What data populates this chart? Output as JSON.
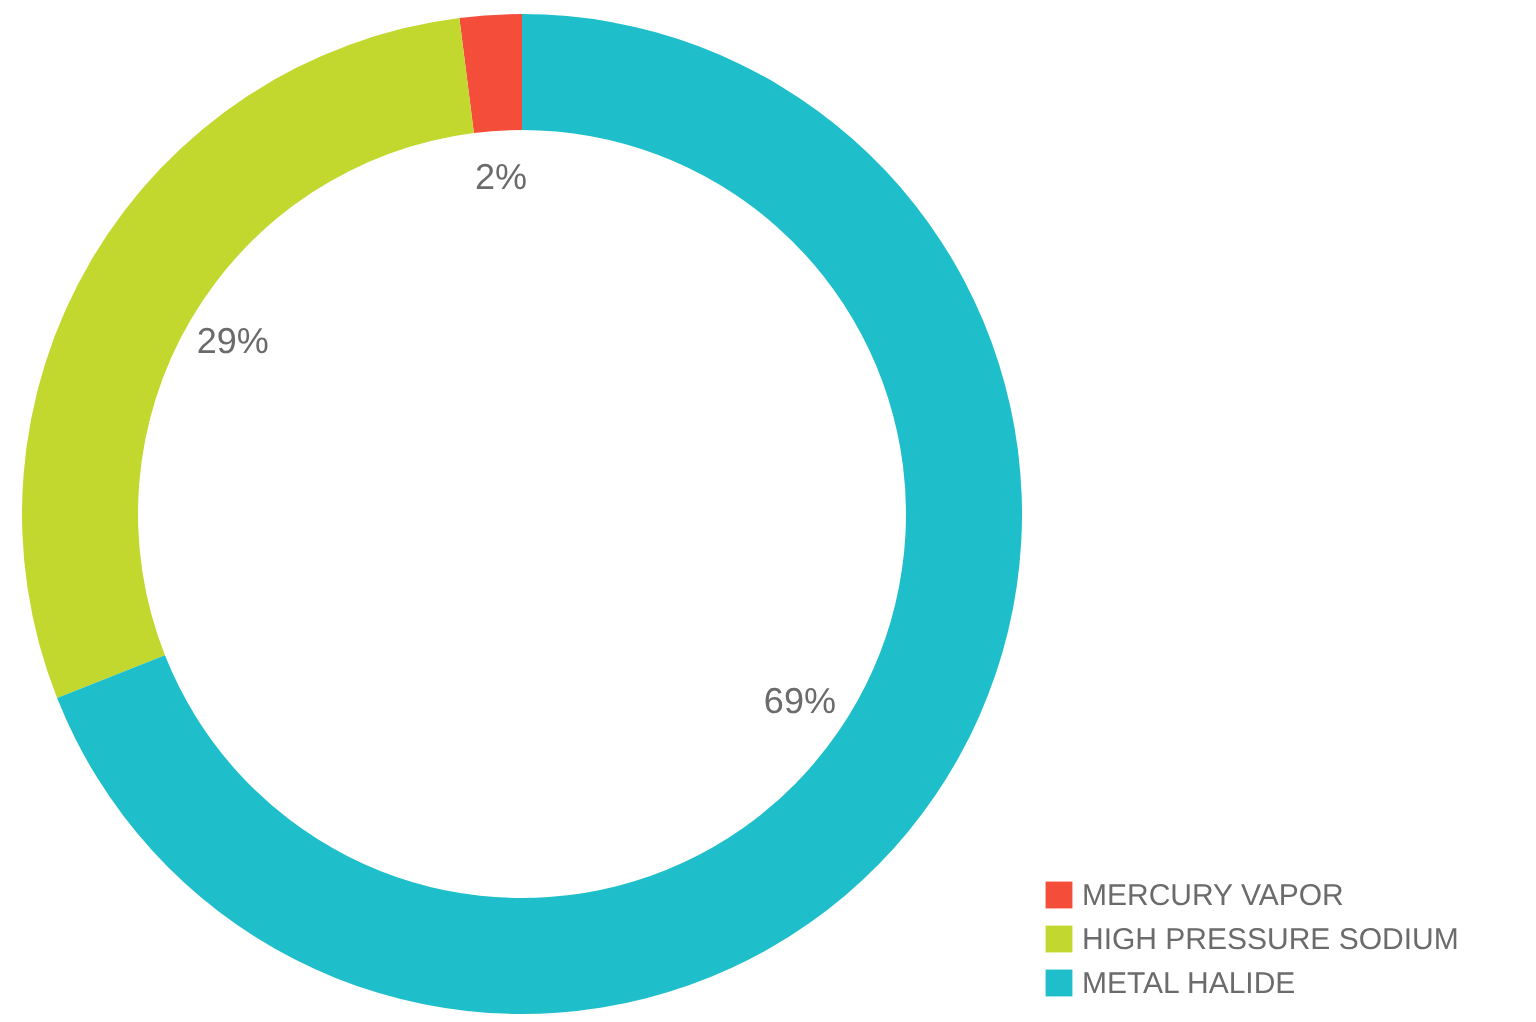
{
  "chart_data": {
    "type": "donut",
    "categories": [
      "MERCURY VAPOR",
      "HIGH PRESSURE SODIUM",
      "METAL HALIDE"
    ],
    "values": [
      2,
      29,
      69
    ],
    "value_labels": [
      "2%",
      "29%",
      "69%"
    ],
    "colors": [
      "#f44e3b",
      "#c2d82e",
      "#1ebfca"
    ],
    "legend": "bottom right"
  }
}
